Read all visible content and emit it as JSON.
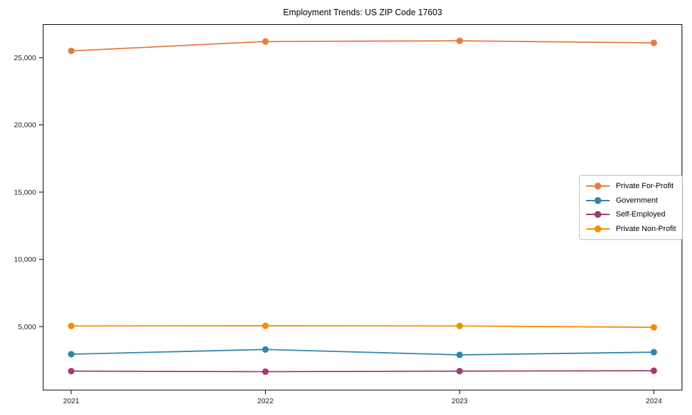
{
  "chart_data": {
    "type": "line",
    "title": "Employment Trends: US ZIP Code 17603",
    "categories": [
      "2021",
      "2022",
      "2023",
      "2024"
    ],
    "series": [
      {
        "name": "Private For-Profit",
        "color": "#e8793f",
        "values": [
          25500,
          26200,
          26250,
          26100
        ]
      },
      {
        "name": "Government",
        "color": "#2e86ab",
        "values": [
          2950,
          3300,
          2900,
          3100
        ]
      },
      {
        "name": "Self-Employed",
        "color": "#a23b72",
        "values": [
          1690,
          1650,
          1690,
          1720
        ]
      },
      {
        "name": "Private Non-Profit",
        "color": "#f18f01",
        "values": [
          5050,
          5060,
          5050,
          4950
        ]
      }
    ],
    "xlabel": "",
    "ylabel": "",
    "ylim": [
      280,
      27460
    ],
    "yticks": [
      5000,
      10000,
      15000,
      20000,
      25000
    ],
    "ytick_labels": [
      "5,000",
      "10,000",
      "15,000",
      "20,000",
      "25,000"
    ],
    "legend_position": "center right",
    "grid": false,
    "marker": "circle",
    "axis_color": "#000000"
  }
}
